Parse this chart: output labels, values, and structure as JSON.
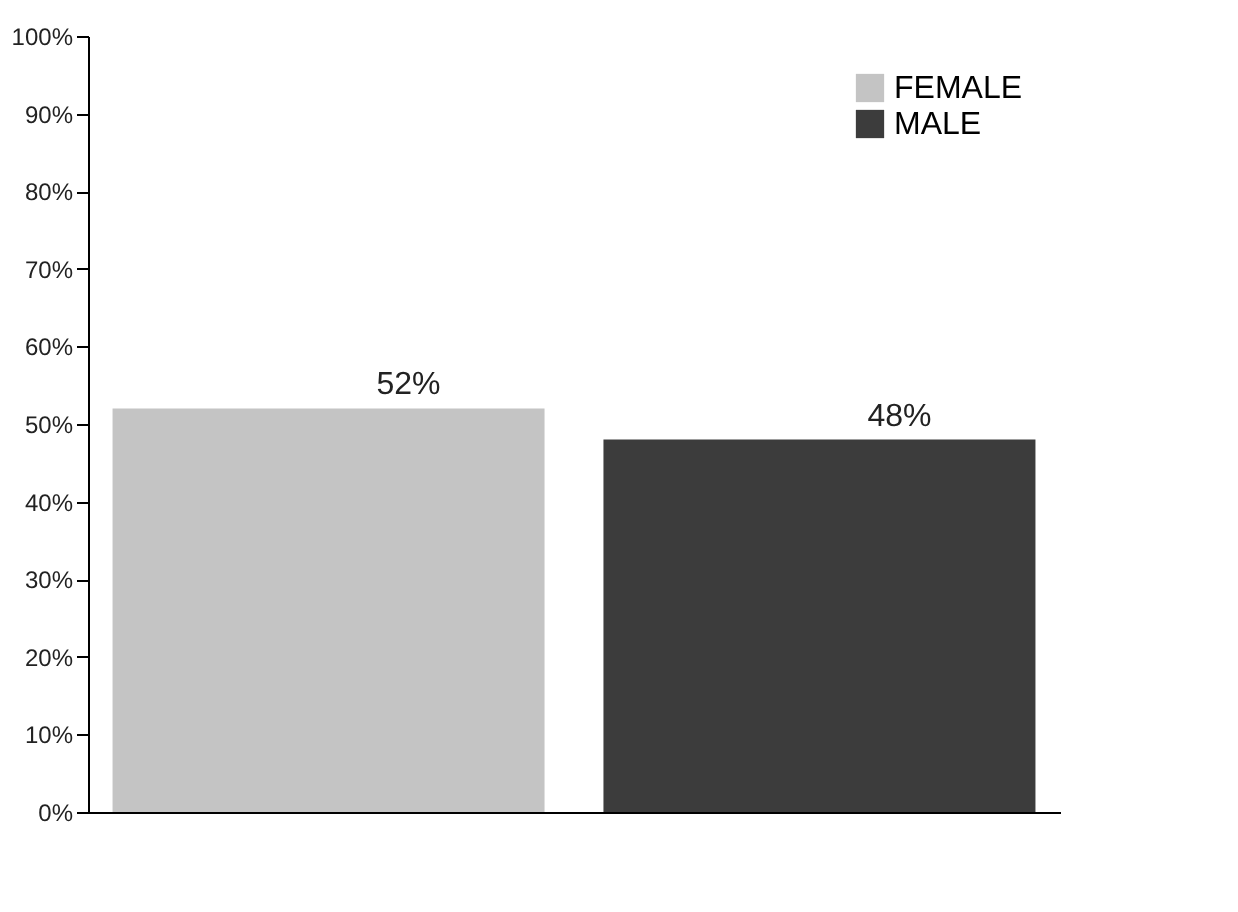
{
  "chart_data": {
    "type": "bar",
    "categories": [
      null
    ],
    "series": [
      {
        "name": "FEMALE",
        "color": "#c4c4c4",
        "values": [
          52
        ],
        "value_labels": [
          "52%"
        ]
      },
      {
        "name": "MALE",
        "color": "#3c3c3c",
        "values": [
          48
        ],
        "value_labels": [
          "48%"
        ]
      }
    ],
    "ylim": [
      0,
      100
    ],
    "yticks": [
      {
        "value": 0,
        "label": "0%"
      },
      {
        "value": 10,
        "label": "10%"
      },
      {
        "value": 20,
        "label": "20%"
      },
      {
        "value": 30,
        "label": "30%"
      },
      {
        "value": 40,
        "label": "40%"
      },
      {
        "value": 50,
        "label": "50%"
      },
      {
        "value": 60,
        "label": "60%"
      },
      {
        "value": 70,
        "label": "70%"
      },
      {
        "value": 80,
        "label": "80%"
      },
      {
        "value": 90,
        "label": "90%"
      },
      {
        "value": 100,
        "label": "100%"
      }
    ],
    "grid": false,
    "legend": "top right"
  }
}
